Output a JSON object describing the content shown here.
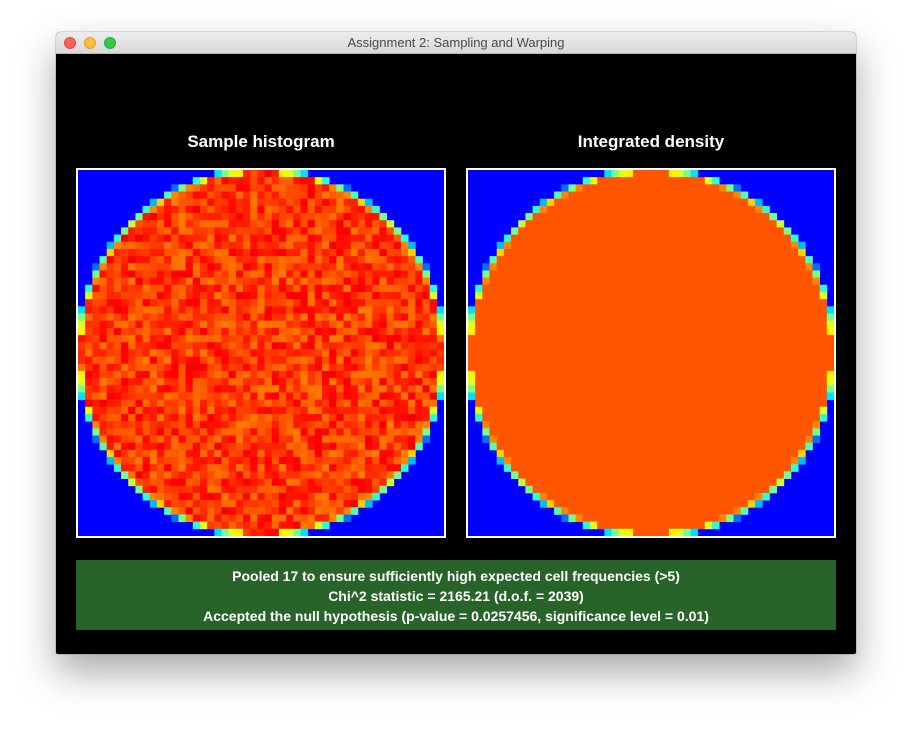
{
  "window": {
    "title": "Assignment 2: Sampling and Warping"
  },
  "panels": {
    "histogram_title": "Sample histogram",
    "density_title": "Integrated density"
  },
  "colors": {
    "background": "#0000ff",
    "density_fill": "#ff5500",
    "stats_background": "#28642a"
  },
  "stats": {
    "line1": "Pooled 17 to ensure sufficiently high expected cell frequencies (>5)",
    "line2": "Chi^2 statistic = 2165.21 (d.o.f. = 2039)",
    "line3": "Accepted the null hypothesis (p-value = 0.0257456, significance level = 0.01)"
  }
}
